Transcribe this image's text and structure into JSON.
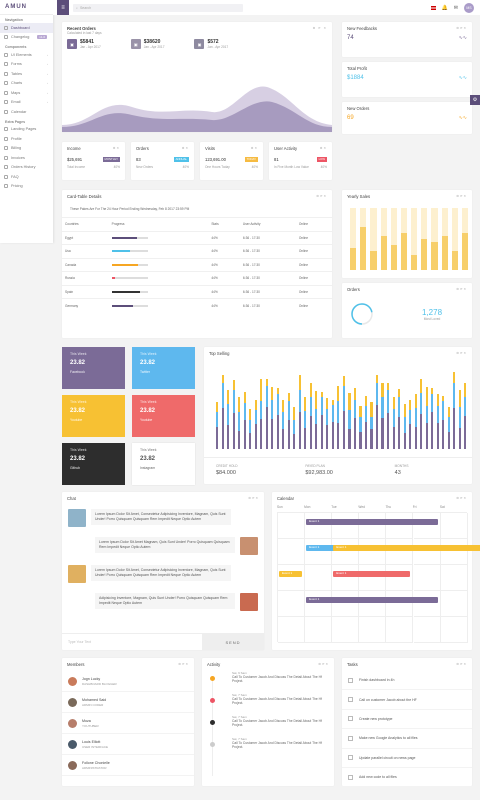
{
  "app": {
    "logo": "AMUN"
  },
  "sidebar": {
    "sec1": "Navigation",
    "sec2": "Components",
    "sec3": "Extra Pages",
    "items": [
      {
        "label": "Dashboard",
        "active": true
      },
      {
        "label": "Changelog",
        "badge": "v1.0"
      },
      {
        "label": "UI Elements"
      },
      {
        "label": "Forms"
      },
      {
        "label": "Tables"
      },
      {
        "label": "Charts"
      },
      {
        "label": "Maps"
      },
      {
        "label": "Email"
      },
      {
        "label": "Calendar"
      }
    ],
    "extra": [
      {
        "label": "Landing Pages"
      },
      {
        "label": "Profile"
      },
      {
        "label": "Billing"
      },
      {
        "label": "Invoices"
      },
      {
        "label": "Orders History"
      },
      {
        "label": "FAQ"
      },
      {
        "label": "Pricing"
      }
    ]
  },
  "topbar": {
    "search_placeholder": "Search",
    "avatar": "MS"
  },
  "recent_orders": {
    "title": "Recent Orders",
    "subtitle": "Calculated in last 7 days",
    "stats": [
      {
        "value": "$5841",
        "range": "Jan - Apr 2017",
        "color": "#7b6b97"
      },
      {
        "value": "$38620",
        "range": "Jan - Apr 2017",
        "color": "#9a93a8"
      },
      {
        "value": "$572",
        "range": "Jan - Apr 2017",
        "color": "#8e8aa0"
      }
    ]
  },
  "feedbacks": {
    "title": "New Feedbacks",
    "value": "74"
  },
  "profit": {
    "title": "Total Profit",
    "value": "$1884"
  },
  "new_orders": {
    "title": "New Orders",
    "value": "69"
  },
  "kpis": [
    {
      "title": "Income",
      "value": "$25,691",
      "label": "Total Income",
      "badge": "MONTHLY",
      "badge_color": "#7b6b97",
      "pct": "40%"
    },
    {
      "title": "Orders",
      "value": "83",
      "label": "New Orders",
      "badge": "ANNUAL",
      "badge_color": "#4fc1e9",
      "pct": "40%"
    },
    {
      "title": "Visits",
      "value": "123,691.00",
      "label": "One Hours Today",
      "badge": "TODAY",
      "badge_color": "#f6bb42",
      "pct": "40%"
    },
    {
      "title": "User Activity",
      "value": "81",
      "label": "In Five Month Low Value",
      "badge": "LOW",
      "badge_color": "#ed5565",
      "pct": "40%"
    }
  ],
  "card_table": {
    "title": "Card-Table Details",
    "note": "These Pakes Are For The 24 Hour Period Ending Wednesday, Feb 8 2017 23:59 PM",
    "headers": [
      "Countries",
      "Progress",
      "Stats",
      "User Activity",
      "Online"
    ],
    "rows": [
      {
        "country": "Egypt",
        "stat": "44%",
        "act": "6:36 - 17:30",
        "online": "Online",
        "p": 0.7,
        "color": "#5c4e7a"
      },
      {
        "country": "Usa",
        "stat": "44%",
        "act": "6:36 - 17:30",
        "online": "Online",
        "p": 0.5,
        "color": "#4fc1e9"
      },
      {
        "country": "Canada",
        "stat": "44%",
        "act": "6:36 - 17:30",
        "online": "Online",
        "p": 0.72,
        "color": "#f6a623"
      },
      {
        "country": "Russia",
        "stat": "44%",
        "act": "6:36 - 17:30",
        "online": "Online",
        "p": 0.1,
        "color": "#ed5565"
      },
      {
        "country": "Spain",
        "stat": "44%",
        "act": "6:36 - 17:30",
        "online": "Online",
        "p": 0.8,
        "color": "#333333"
      },
      {
        "country": "Germany",
        "stat": "44%",
        "act": "6:36 - 17:30",
        "online": "Online",
        "p": 0.6,
        "color": "#5c4e7a"
      }
    ]
  },
  "yearly": {
    "title": "Yearly Sales",
    "values": [
      0.35,
      0.7,
      0.3,
      0.55,
      0.4,
      0.6,
      0.25,
      0.5,
      0.45,
      0.55,
      0.3,
      0.6
    ]
  },
  "orders": {
    "title": "Orders",
    "value": "1,278",
    "label": "Most Loved"
  },
  "tiles": [
    {
      "t1": "This Week",
      "t2": "23.82",
      "t3": "Facebook",
      "bg": "#7b6b97"
    },
    {
      "t1": "This Week",
      "t2": "23.82",
      "t3": "Twitter",
      "bg": "#5eb8ee"
    },
    {
      "t1": "This Week",
      "t2": "23.82",
      "t3": "Youtube",
      "bg": "#f7c133"
    },
    {
      "t1": "This Week",
      "t2": "23.82",
      "t3": "Youtube",
      "bg": "#ef6a6a"
    },
    {
      "t1": "This Week",
      "t2": "23.82",
      "t3": "Github",
      "bg": "#2d2d2d"
    },
    {
      "t1": "This Week",
      "t2": "23.82",
      "t3": "Instagram",
      "bg": "#ffffff"
    }
  ],
  "top_selling": {
    "title": "Top Selling",
    "stats": [
      {
        "label": "CREDIT HOLD",
        "value": "$84.000"
      },
      {
        "label": "PAYED PLAN",
        "value": "$92,983.00"
      },
      {
        "label": "MONTHS",
        "value": "43"
      }
    ]
  },
  "chat": {
    "title": "Chat",
    "messages": [
      {
        "text": "Lorem Ipsum Dolor Sit Amet, Consectetur Adipisicing Inventore, Magnam, Quis Sunt Under! Porro Quisquam Quisquam Rem Impedit Neque Optio Autem",
        "side": "l"
      },
      {
        "text": "Lorem Ipsum Dolor Sit Amet Magnam, Quis Sunt Under! Porro Quisquam Quisquam Rem Impedit Neque Optio Autem",
        "side": "r"
      },
      {
        "text": "Lorem Ipsum Dolor Sit Amet, Consectetur Adipisicing Inventore, Magnam, Quis Sunt Under! Porro Quisquam Quisquam Rem Impedit Neque Optio Autem",
        "side": "l"
      },
      {
        "text": "Adipisicing Inventore, Magnam, Quis Sunt Under! Porro Quisquam Quisquam Rem Impedit Neque Optio Autem",
        "side": "r"
      }
    ],
    "placeholder": "Type Your Text",
    "send": "SEND"
  },
  "calendar": {
    "title": "Calendar",
    "days": [
      "Sun",
      "Mon",
      "Tue",
      "Wed",
      "Thu",
      "Fri",
      "Sat"
    ],
    "event": "Event 1"
  },
  "members": {
    "title": "Members",
    "list": [
      {
        "name": "Jogn Lucky",
        "role": "DASHBOARD BLOGGER",
        "c": "#c97b5b"
      },
      {
        "name": "Mohamed Said",
        "role": "ADMIN CODER",
        "c": "#7a6a5a"
      },
      {
        "name": "Moza",
        "role": "YOUTUBER",
        "c": "#b77e6b"
      },
      {
        "name": "Louis Elliott",
        "role": "USER INTERFACE",
        "c": "#4a5a6a"
      },
      {
        "name": "Follone Chonielle",
        "role": "ADMINISTRATOR",
        "c": "#8a6a5a"
      }
    ]
  },
  "activity": {
    "title": "Activity",
    "items": [
      {
        "time": "Sat, 9 Sam",
        "text": "Call To Customer Jacob And Discuss The Detail About The Hf Project.",
        "c": "#f6a623"
      },
      {
        "time": "Sat, 7 Sam",
        "text": "Call To Customer Jacob And Discuss The Detail About The Hf Project.",
        "c": "#ed5565"
      },
      {
        "time": "Sat, 7 Sam",
        "text": "Call To Customer Jacob And Discuss The Detail About The Hf Project.",
        "c": "#2d2d2d"
      },
      {
        "time": "Sat, 7 Sam",
        "text": "Call To Customer Jacob And Discuss The Detail About The Hf Project.",
        "c": "#cccccc"
      }
    ]
  },
  "tasks": {
    "title": "Tasks",
    "list": [
      "Finish dashboard in 4h",
      "Call on customer Jacob about the HF",
      "Create new prototype",
      "Make new Google Analytics to all files",
      "Update parallel circuit on news page",
      "Add new code to all files"
    ]
  }
}
